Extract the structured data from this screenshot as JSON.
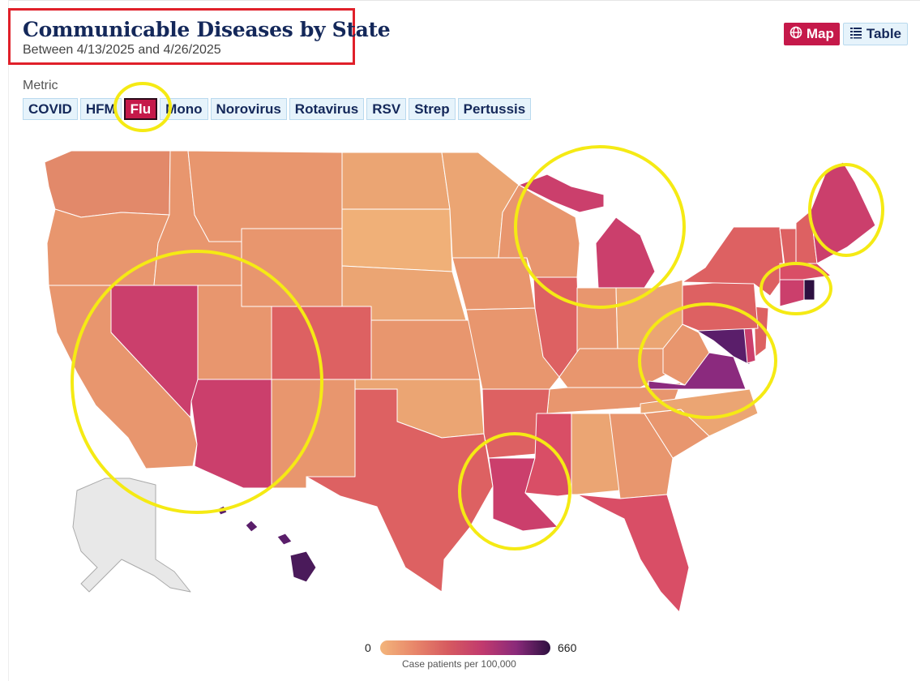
{
  "header": {
    "title": "Communicable Diseases by State",
    "subtitle": "Between 4/13/2025 and 4/26/2025"
  },
  "view_toggle": {
    "map_label": "Map",
    "map_icon": "globe-icon",
    "table_label": "Table",
    "table_icon": "table-list-icon",
    "selected": "Map"
  },
  "metric": {
    "label": "Metric",
    "options": [
      "COVID",
      "HFM",
      "Flu",
      "Mono",
      "Norovirus",
      "Rotavirus",
      "RSV",
      "Strep",
      "Pertussis"
    ],
    "selected": "Flu"
  },
  "legend": {
    "min": "0",
    "max": "660",
    "caption": "Case patients per 100,000",
    "color_low": "#f3b57b",
    "color_high": "#2d1040"
  },
  "map": {
    "no_data_color": "#e8e8e8",
    "annotation_color": "#f5ea14",
    "highlight_box_color": "#e0202a"
  }
}
